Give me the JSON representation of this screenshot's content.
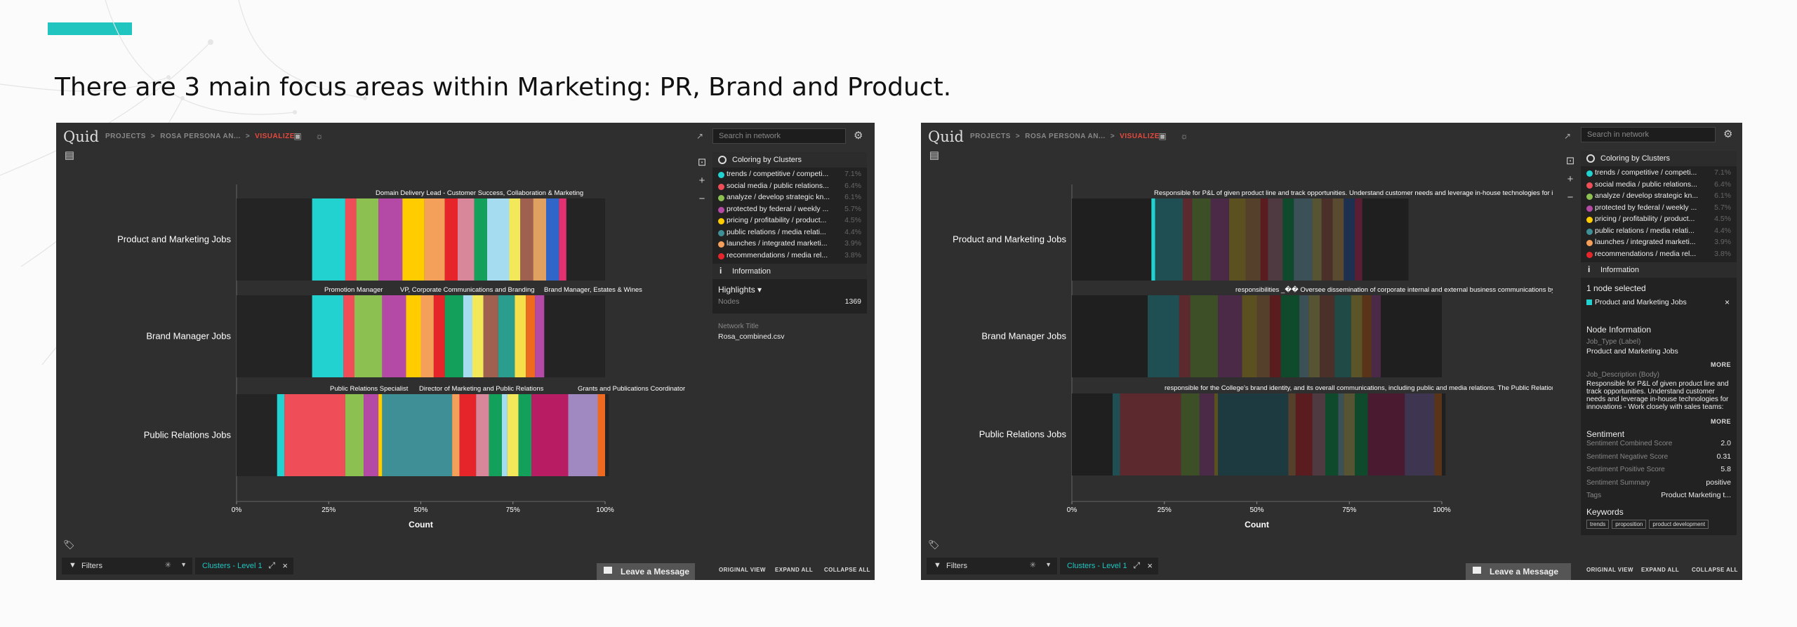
{
  "slide": {
    "title": "There are 3 main focus areas within Marketing: PR, Brand and Product."
  },
  "colors": {
    "accent": "#21c5c0",
    "visualize": "#e5493e",
    "panel_bg": "#2f2f2f"
  },
  "app": {
    "logo": "Quid",
    "breadcrumb": [
      "PROJECTS",
      "ROSA PERSONA AN...",
      "VISUALIZE"
    ],
    "search_placeholder": "Search in network",
    "coloring_title": "Coloring by Clusters",
    "information_title": "Information",
    "filters_label": "Filters",
    "clusters_chip": "Clusters - Level 1",
    "leave_message": "Leave a Message",
    "links": [
      "ORIGINAL VIEW",
      "EXPAND ALL",
      "COLLAPSE ALL"
    ],
    "icons": [
      "save-icon",
      "bulb-icon",
      "external-link-icon",
      "gear-icon",
      "fit-view-icon",
      "zoom-in-icon",
      "zoom-out-icon",
      "tag-icon",
      "filter-icon",
      "expand-icon",
      "close-icon",
      "message-icon"
    ]
  },
  "legend": [
    {
      "label": "trends / competitive / competi...",
      "pct": "7.1%",
      "color": "#21d2d0"
    },
    {
      "label": "social media / public relations...",
      "pct": "6.4%",
      "color": "#ef4e58"
    },
    {
      "label": "analyze / develop strategic kn...",
      "pct": "6.1%",
      "color": "#8cc152"
    },
    {
      "label": "protected by federal / weekly ...",
      "pct": "5.7%",
      "color": "#b44aa6"
    },
    {
      "label": "pricing / profitability / product...",
      "pct": "4.5%",
      "color": "#ffcc00"
    },
    {
      "label": "public relations / media relati...",
      "pct": "4.4%",
      "color": "#3f8f96"
    },
    {
      "label": "launches / integrated marketi...",
      "pct": "3.9%",
      "color": "#f5a05a"
    },
    {
      "label": "recommendations / media rel...",
      "pct": "3.8%",
      "color": "#e5252a"
    }
  ],
  "left_info": {
    "highlights_label": "Highlights",
    "nodes_label": "Nodes",
    "nodes_value": "1369",
    "network_title_label": "Network Title",
    "network_title_value": "Rosa_combined.csv"
  },
  "right_info": {
    "selected": "1 node selected",
    "selected_item": "Product and Marketing Jobs",
    "node_information": "Node Information",
    "job_type_label": "Job_Type (Label)",
    "job_type_value": "Product and Marketing Jobs",
    "more": "MORE",
    "job_desc_label": "Job_Description (Body)",
    "job_desc_value": "Responsible for P&L of given product line and track opportunities. Understand customer needs and leverage in-house technologies for innovations - Work closely with sales teams: account managers,",
    "sentiment_title": "Sentiment",
    "sentiment": [
      {
        "label": "Sentiment Combined Score",
        "value": "2.0"
      },
      {
        "label": "Sentiment Negative Score",
        "value": "0.31"
      },
      {
        "label": "Sentiment Positive Score",
        "value": "5.8"
      },
      {
        "label": "Sentiment Summary",
        "value": "positive"
      },
      {
        "label": "Tags",
        "value": "Product Marketing t..."
      }
    ],
    "keywords_title": "Keywords",
    "keywords": [
      "trends",
      "proposition",
      "product development"
    ]
  },
  "chart_data": [
    {
      "type": "bar",
      "stacked": "100%",
      "categories": [
        "Product and Marketing Jobs",
        "Brand Manager Jobs",
        "Public Relations Jobs"
      ],
      "xlabel": "Count",
      "xticks": [
        "0%",
        "25%",
        "50%",
        "75%",
        "100%"
      ],
      "xlim": [
        0,
        100
      ],
      "segments": [
        [
          {
            "v": 20.5,
            "c": "#242424"
          },
          {
            "v": 9,
            "c": "#21d2d0"
          },
          {
            "v": 3,
            "c": "#ef4e58"
          },
          {
            "v": 6,
            "c": "#8cc152"
          },
          {
            "v": 6.5,
            "c": "#b44aa6"
          },
          {
            "v": 6,
            "c": "#ffcc00"
          },
          {
            "v": 5.5,
            "c": "#f5a05a"
          },
          {
            "v": 3.5,
            "c": "#e5252a"
          },
          {
            "v": 4.5,
            "c": "#d8879a"
          },
          {
            "v": 3.5,
            "c": "#12a05a"
          },
          {
            "v": 6,
            "c": "#a6dcf0"
          },
          {
            "v": 3,
            "c": "#f2e85a"
          },
          {
            "v": 3.5,
            "c": "#a06050"
          },
          {
            "v": 3.5,
            "c": "#e0a060"
          },
          {
            "v": 3.5,
            "c": "#2f66c8"
          },
          {
            "v": 2,
            "c": "#e23070"
          },
          {
            "v": 10.5,
            "c": "#242424"
          }
        ],
        [
          {
            "v": 20.5,
            "c": "#242424"
          },
          {
            "v": 8.5,
            "c": "#21d2d0"
          },
          {
            "v": 3,
            "c": "#ef4e58"
          },
          {
            "v": 7.5,
            "c": "#8cc152"
          },
          {
            "v": 6.5,
            "c": "#b44aa6"
          },
          {
            "v": 4,
            "c": "#ffcc00"
          },
          {
            "v": 3.5,
            "c": "#f5a05a"
          },
          {
            "v": 3,
            "c": "#e5252a"
          },
          {
            "v": 5,
            "c": "#12a05a"
          },
          {
            "v": 2.5,
            "c": "#a6dcf0"
          },
          {
            "v": 3,
            "c": "#f2e85a"
          },
          {
            "v": 4,
            "c": "#a06050"
          },
          {
            "v": 4.5,
            "c": "#2a9d8f"
          },
          {
            "v": 3,
            "c": "#f5e04a"
          },
          {
            "v": 2.5,
            "c": "#ee6a20"
          },
          {
            "v": 2.5,
            "c": "#b44aa6"
          },
          {
            "v": 16.5,
            "c": "#242424"
          }
        ],
        [
          {
            "v": 11,
            "c": "#242424"
          },
          {
            "v": 2,
            "c": "#21d2d0"
          },
          {
            "v": 16.5,
            "c": "#ef4e58"
          },
          {
            "v": 5,
            "c": "#8cc152"
          },
          {
            "v": 4,
            "c": "#b44aa6"
          },
          {
            "v": 1,
            "c": "#ffcc00"
          },
          {
            "v": 19,
            "c": "#3f8f96"
          },
          {
            "v": 2,
            "c": "#f5a05a"
          },
          {
            "v": 4.5,
            "c": "#e5252a"
          },
          {
            "v": 3.5,
            "c": "#d8879a"
          },
          {
            "v": 3.5,
            "c": "#12a05a"
          },
          {
            "v": 1.5,
            "c": "#a6dcf0"
          },
          {
            "v": 3,
            "c": "#f2e85a"
          },
          {
            "v": 3.5,
            "c": "#12a05a"
          },
          {
            "v": 10,
            "c": "#b81c62"
          },
          {
            "v": 8,
            "c": "#a088c0"
          },
          {
            "v": 2,
            "c": "#ee6a20"
          },
          {
            "v": 1,
            "c": "#242424"
          }
        ]
      ],
      "annotations": [
        [
          "Domain Delivery Lead - Customer Success, Collaboration & Marketing"
        ],
        [
          "Promotion Manager",
          "VP, Corporate Communications and Branding",
          "Brand Manager, Estates & Wines"
        ],
        [
          "Public Relations Specialist",
          "Director of Marketing and Public Relations",
          "Grants and Publications Coordinator"
        ]
      ]
    },
    {
      "type": "bar",
      "stacked": "100%",
      "highlighted": "Product and Marketing Jobs",
      "categories": [
        "Product and Marketing Jobs",
        "Brand Manager Jobs",
        "Public Relations Jobs"
      ],
      "xlabel": "Count",
      "xticks": [
        "0%",
        "25%",
        "50%",
        "75%",
        "100%"
      ],
      "xlim": [
        0,
        100
      ],
      "segments": [
        [
          {
            "v": 21.5,
            "c": "#1f1f1f"
          },
          {
            "v": 1,
            "c": "#21d2d0"
          },
          {
            "v": 7.5,
            "c": "#1f4f52"
          },
          {
            "v": 2.5,
            "c": "#5c2a2e"
          },
          {
            "v": 5,
            "c": "#3c4f27"
          },
          {
            "v": 5,
            "c": "#4a2a46"
          },
          {
            "v": 4.5,
            "c": "#5a5020"
          },
          {
            "v": 4,
            "c": "#55402b"
          },
          {
            "v": 2,
            "c": "#5a1c1e"
          },
          {
            "v": 4,
            "c": "#4e3a40"
          },
          {
            "v": 3,
            "c": "#0f4a2c"
          },
          {
            "v": 5,
            "c": "#3c5058"
          },
          {
            "v": 2.5,
            "c": "#565432"
          },
          {
            "v": 3,
            "c": "#4a3028"
          },
          {
            "v": 3,
            "c": "#594a30"
          },
          {
            "v": 3,
            "c": "#1d3050"
          },
          {
            "v": 2,
            "c": "#5a1e34"
          },
          {
            "v": 12.5,
            "c": "#1f1f1f"
          }
        ],
        [
          {
            "v": 20.5,
            "c": "#1f1f1f"
          },
          {
            "v": 8.5,
            "c": "#1f4f52"
          },
          {
            "v": 3,
            "c": "#5c2a2e"
          },
          {
            "v": 7.5,
            "c": "#3c4f27"
          },
          {
            "v": 6.5,
            "c": "#4a2a46"
          },
          {
            "v": 4,
            "c": "#5a5020"
          },
          {
            "v": 3.5,
            "c": "#55402b"
          },
          {
            "v": 3,
            "c": "#5a1c1e"
          },
          {
            "v": 5,
            "c": "#0f4a2c"
          },
          {
            "v": 2.5,
            "c": "#3c5058"
          },
          {
            "v": 3,
            "c": "#565432"
          },
          {
            "v": 4,
            "c": "#4a3028"
          },
          {
            "v": 4.5,
            "c": "#1f4a46"
          },
          {
            "v": 3,
            "c": "#5a5428"
          },
          {
            "v": 2.5,
            "c": "#5a3418"
          },
          {
            "v": 2.5,
            "c": "#4a2a46"
          },
          {
            "v": 16.5,
            "c": "#1f1f1f"
          }
        ],
        [
          {
            "v": 11,
            "c": "#1f1f1f"
          },
          {
            "v": 2,
            "c": "#1f4f52"
          },
          {
            "v": 16.5,
            "c": "#5c2a2e"
          },
          {
            "v": 5,
            "c": "#3c4f27"
          },
          {
            "v": 4,
            "c": "#4a2a46"
          },
          {
            "v": 1,
            "c": "#5a5020"
          },
          {
            "v": 19,
            "c": "#1d3a40"
          },
          {
            "v": 2,
            "c": "#55402b"
          },
          {
            "v": 4.5,
            "c": "#5a1c1e"
          },
          {
            "v": 3.5,
            "c": "#4e3a40"
          },
          {
            "v": 3.5,
            "c": "#0f4a2c"
          },
          {
            "v": 1.5,
            "c": "#3c5058"
          },
          {
            "v": 3,
            "c": "#565432"
          },
          {
            "v": 3.5,
            "c": "#0f4a2c"
          },
          {
            "v": 10,
            "c": "#4a1a30"
          },
          {
            "v": 8,
            "c": "#3e3650"
          },
          {
            "v": 2,
            "c": "#5a3418"
          },
          {
            "v": 1,
            "c": "#1f1f1f"
          }
        ]
      ],
      "annotations": [
        [
          "Responsible for P&L of given product line and track opportunities. Understand customer needs and leverage in-house technologies for innov"
        ],
        [
          "responsibilities _�� Oversee dissemination of corporate internal and external business communications by cre"
        ],
        [
          "responsible for the College's brand identity, and its overall communications, including public and media relations.  The Public Relations S"
        ]
      ]
    }
  ]
}
